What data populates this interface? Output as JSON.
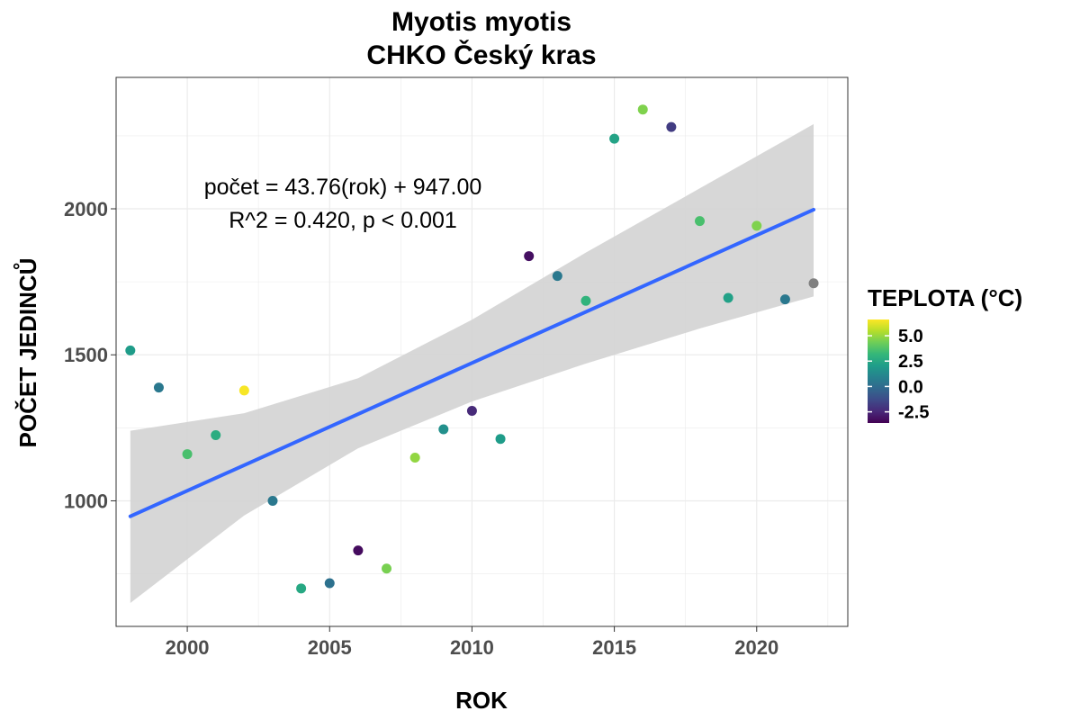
{
  "chart_data": {
    "type": "scatter",
    "title": [
      "Myotis myotis",
      "CHKO Český kras"
    ],
    "xlabel": "ROK",
    "ylabel": "POČET JEDINCŮ",
    "xlim": [
      1997.5,
      2023.2
    ],
    "ylim": [
      570,
      2450
    ],
    "xticks": [
      2000,
      2005,
      2010,
      2015,
      2020
    ],
    "xtick_labels": [
      "2000",
      "2005",
      "2010",
      "2015",
      "2020"
    ],
    "yticks": [
      1000,
      1500,
      2000
    ],
    "ytick_labels": [
      "1000",
      "1500",
      "2000"
    ],
    "grid": true,
    "annotations": [
      "počet = 43.76(rok) + 947.00",
      "R^2 = 0.420, p < 0.001"
    ],
    "legend": {
      "title": "TEPLOTA (°C)",
      "placement": "right",
      "min": -3.6,
      "max": 6.6,
      "ticks": [
        5.0,
        2.5,
        0.0,
        -2.5
      ],
      "tick_labels": [
        "5.0",
        "2.5",
        "0.0",
        "-2.5"
      ],
      "colors": [
        "#440154",
        "#482878",
        "#3e4a89",
        "#31688e",
        "#26828e",
        "#1f9e89",
        "#35b779",
        "#6ece58",
        "#b5de2b",
        "#fde725"
      ],
      "na_color": "#808080"
    },
    "points": [
      {
        "x": 1998,
        "y": 1515,
        "temp": 2.0
      },
      {
        "x": 1999,
        "y": 1388,
        "temp": 0.5
      },
      {
        "x": 2000,
        "y": 1160,
        "temp": 3.6
      },
      {
        "x": 2001,
        "y": 1225,
        "temp": 2.7
      },
      {
        "x": 2002,
        "y": 1378,
        "temp": 6.5
      },
      {
        "x": 2003,
        "y": 1000,
        "temp": 0.5
      },
      {
        "x": 2004,
        "y": 700,
        "temp": 2.5
      },
      {
        "x": 2005,
        "y": 718,
        "temp": 0.2
      },
      {
        "x": 2006,
        "y": 830,
        "temp": -3.3
      },
      {
        "x": 2007,
        "y": 768,
        "temp": 4.5
      },
      {
        "x": 2008,
        "y": 1148,
        "temp": 4.9
      },
      {
        "x": 2009,
        "y": 1245,
        "temp": 1.5
      },
      {
        "x": 2010,
        "y": 1308,
        "temp": -2.4
      },
      {
        "x": 2011,
        "y": 1212,
        "temp": 2.0
      },
      {
        "x": 2012,
        "y": 1838,
        "temp": -3.2
      },
      {
        "x": 2013,
        "y": 1770,
        "temp": 0.5
      },
      {
        "x": 2014,
        "y": 1685,
        "temp": 3.0
      },
      {
        "x": 2015,
        "y": 2240,
        "temp": 2.3
      },
      {
        "x": 2016,
        "y": 2340,
        "temp": 4.6
      },
      {
        "x": 2017,
        "y": 2280,
        "temp": -1.8
      },
      {
        "x": 2018,
        "y": 1958,
        "temp": 3.6
      },
      {
        "x": 2019,
        "y": 1695,
        "temp": 2.2
      },
      {
        "x": 2020,
        "y": 1942,
        "temp": 4.6
      },
      {
        "x": 2021,
        "y": 1690,
        "temp": 0.5
      },
      {
        "x": 2022,
        "y": 1745,
        "temp": null
      }
    ],
    "trend": {
      "x": [
        1998,
        2022
      ],
      "y": [
        947,
        1997
      ],
      "color": "#3366ff"
    },
    "confidence_band": {
      "x": [
        1998,
        2002,
        2006,
        2010,
        2014,
        2018,
        2022
      ],
      "lower": [
        650,
        950,
        1180,
        1340,
        1470,
        1590,
        1700
      ],
      "upper": [
        1240,
        1300,
        1420,
        1620,
        1850,
        2070,
        2290
      ],
      "color": "#d3d3d3"
    }
  }
}
